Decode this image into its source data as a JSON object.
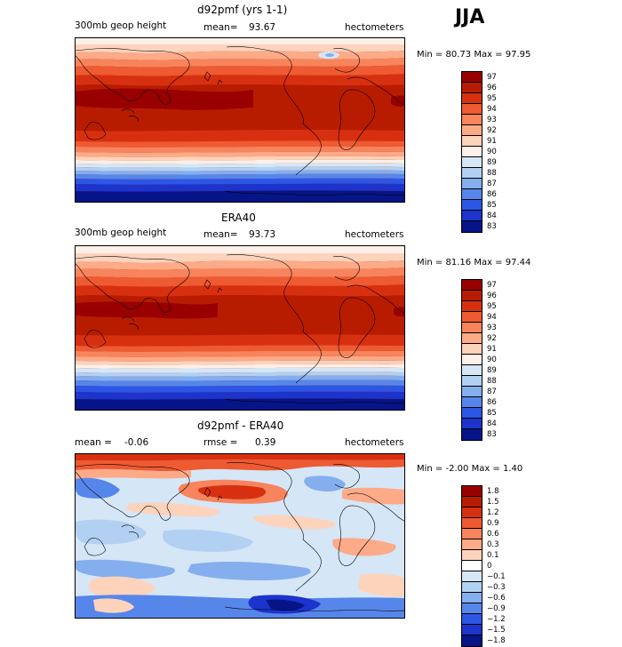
{
  "season_label": "JJA",
  "chart_data": [
    {
      "type": "heatmap",
      "title": "d92pmf (yrs 1-1)",
      "left_label": "300mb geop height",
      "mean_label": "mean=",
      "mean_value": "93.67",
      "units": "hectometers",
      "min_label": "Min =",
      "min_value": "80.73",
      "max_label": "Max =",
      "max_value": "97.95",
      "levels": [
        "97",
        "96",
        "95",
        "94",
        "93",
        "92",
        "91",
        "90",
        "89",
        "88",
        "87",
        "86",
        "85",
        "84",
        "83"
      ],
      "colors": [
        "#990000",
        "#b81c00",
        "#d73010",
        "#ee5a32",
        "#f7845c",
        "#fcaa88",
        "#fdd3bc",
        "#fcf0e8",
        "#d5e6f7",
        "#b2d0f2",
        "#84aeee",
        "#5786ea",
        "#2c56e6",
        "#1c33cc",
        "#061487"
      ],
      "field": "geop_height"
    },
    {
      "type": "heatmap",
      "title": "ERA40",
      "left_label": "300mb geop height",
      "mean_label": "mean=",
      "mean_value": "93.73",
      "units": "hectometers",
      "min_label": "Min =",
      "min_value": "81.16",
      "max_label": "Max =",
      "max_value": "97.44",
      "levels": [
        "97",
        "96",
        "95",
        "94",
        "93",
        "92",
        "91",
        "90",
        "89",
        "88",
        "87",
        "86",
        "85",
        "84",
        "83"
      ],
      "colors": [
        "#990000",
        "#b81c00",
        "#d73010",
        "#ee5a32",
        "#f7845c",
        "#fcaa88",
        "#fdd3bc",
        "#fcf0e8",
        "#d5e6f7",
        "#b2d0f2",
        "#84aeee",
        "#5786ea",
        "#2c56e6",
        "#1c33cc",
        "#061487"
      ],
      "field": "geop_height"
    },
    {
      "type": "heatmap",
      "title": "d92pmf - ERA40",
      "left_label": "mean =",
      "mean_value": "-0.06",
      "rmse_label": "rmse =",
      "rmse_value": "0.39",
      "units": "hectometers",
      "min_label": "Min =",
      "min_value": "-2.00",
      "max_label": "Max =",
      "max_value": "1.40",
      "levels": [
        "1.8",
        "1.5",
        "1.2",
        "0.9",
        "0.6",
        "0.3",
        "0.1",
        "0",
        "−0.1",
        "−0.3",
        "−0.6",
        "−0.9",
        "−1.2",
        "−1.5",
        "−1.8"
      ],
      "colors": [
        "#990000",
        "#b81c00",
        "#d73010",
        "#ee5a32",
        "#f7845c",
        "#fcaa88",
        "#fdd3bc",
        "#ffffff",
        "#d5e6f7",
        "#b2d0f2",
        "#84aeee",
        "#5786ea",
        "#2c56e6",
        "#1c33cc",
        "#061487"
      ],
      "field": "difference"
    }
  ]
}
